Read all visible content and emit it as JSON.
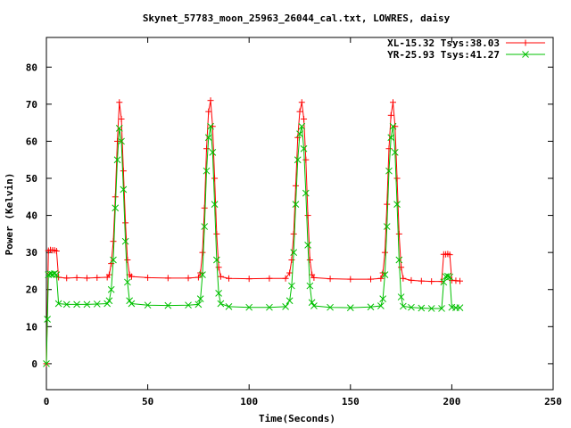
{
  "chart_data": {
    "type": "line",
    "title": "Skynet_57783_moon_25963_26044_cal.txt, LOWRES, daisy",
    "xlabel": "Time(Seconds)",
    "ylabel": "Power (Kelvin)",
    "xlim": [
      0,
      250
    ],
    "ylim": [
      -7,
      88
    ],
    "xticks": [
      0,
      50,
      100,
      150,
      200,
      250
    ],
    "yticks": [
      0,
      10,
      20,
      30,
      40,
      50,
      60,
      70,
      80
    ],
    "grid": false,
    "legend_position": "top-right",
    "series": [
      {
        "name": "XL-15.32 Tsys:38.03",
        "color": "#ff0000",
        "marker": "plus",
        "points": [
          [
            0,
            0
          ],
          [
            1,
            30.5
          ],
          [
            2,
            30.7
          ],
          [
            3,
            30.6
          ],
          [
            4,
            30.6
          ],
          [
            5,
            30.4
          ],
          [
            6,
            23.3
          ],
          [
            10,
            23.1
          ],
          [
            15,
            23.2
          ],
          [
            20,
            23.1
          ],
          [
            25,
            23.2
          ],
          [
            30,
            23.3
          ],
          [
            31,
            24.0
          ],
          [
            32,
            27.0
          ],
          [
            33,
            33.0
          ],
          [
            34,
            45.0
          ],
          [
            35,
            60.0
          ],
          [
            36,
            70.5
          ],
          [
            37,
            66.0
          ],
          [
            38,
            52.0
          ],
          [
            39,
            38.0
          ],
          [
            40,
            28.0
          ],
          [
            41,
            24.0
          ],
          [
            42,
            23.5
          ],
          [
            50,
            23.2
          ],
          [
            60,
            23.1
          ],
          [
            70,
            23.1
          ],
          [
            75,
            23.3
          ],
          [
            76,
            24.5
          ],
          [
            77,
            30.0
          ],
          [
            78,
            42.0
          ],
          [
            79,
            58.0
          ],
          [
            80,
            68.0
          ],
          [
            81,
            71.0
          ],
          [
            82,
            64.0
          ],
          [
            83,
            50.0
          ],
          [
            84,
            35.0
          ],
          [
            85,
            26.0
          ],
          [
            86,
            23.5
          ],
          [
            90,
            23.0
          ],
          [
            100,
            22.9
          ],
          [
            110,
            23.0
          ],
          [
            118,
            23.0
          ],
          [
            120,
            24.5
          ],
          [
            121,
            28.0
          ],
          [
            122,
            35.0
          ],
          [
            123,
            48.0
          ],
          [
            124,
            61.0
          ],
          [
            125,
            68.0
          ],
          [
            126,
            70.5
          ],
          [
            127,
            66.0
          ],
          [
            128,
            55.0
          ],
          [
            129,
            40.0
          ],
          [
            130,
            28.0
          ],
          [
            131,
            24.0
          ],
          [
            132,
            23.2
          ],
          [
            140,
            22.9
          ],
          [
            150,
            22.8
          ],
          [
            160,
            22.8
          ],
          [
            165,
            23.0
          ],
          [
            166,
            24.5
          ],
          [
            167,
            30.0
          ],
          [
            168,
            43.0
          ],
          [
            169,
            58.0
          ],
          [
            170,
            67.0
          ],
          [
            171,
            70.5
          ],
          [
            172,
            64.0
          ],
          [
            173,
            50.0
          ],
          [
            174,
            35.0
          ],
          [
            175,
            26.0
          ],
          [
            176,
            23.0
          ],
          [
            180,
            22.5
          ],
          [
            185,
            22.3
          ],
          [
            190,
            22.2
          ],
          [
            195,
            22.2
          ],
          [
            196,
            29.5
          ],
          [
            197,
            29.5
          ],
          [
            198,
            29.6
          ],
          [
            199,
            29.4
          ],
          [
            200,
            22.5
          ],
          [
            202,
            22.4
          ],
          [
            204,
            22.3
          ]
        ]
      },
      {
        "name": "YR-25.93 Tsys:41.27",
        "color": "#00c000",
        "marker": "cross",
        "points": [
          [
            0,
            0
          ],
          [
            0.5,
            12.0
          ],
          [
            1,
            24.0
          ],
          [
            2,
            24.2
          ],
          [
            3,
            24.1
          ],
          [
            4,
            24.3
          ],
          [
            5,
            24.0
          ],
          [
            6,
            16.2
          ],
          [
            10,
            16.0
          ],
          [
            15,
            16.0
          ],
          [
            20,
            16.0
          ],
          [
            25,
            16.1
          ],
          [
            30,
            16.2
          ],
          [
            31,
            17.0
          ],
          [
            32,
            20.0
          ],
          [
            33,
            28.0
          ],
          [
            34,
            42.0
          ],
          [
            35,
            55.0
          ],
          [
            36,
            63.5
          ],
          [
            37,
            60.0
          ],
          [
            38,
            47.0
          ],
          [
            39,
            33.0
          ],
          [
            40,
            22.0
          ],
          [
            41,
            17.0
          ],
          [
            42,
            16.2
          ],
          [
            50,
            15.8
          ],
          [
            60,
            15.7
          ],
          [
            70,
            15.8
          ],
          [
            75,
            16.0
          ],
          [
            76,
            17.5
          ],
          [
            77,
            24.0
          ],
          [
            78,
            37.0
          ],
          [
            79,
            52.0
          ],
          [
            80,
            61.0
          ],
          [
            81,
            64.0
          ],
          [
            82,
            57.0
          ],
          [
            83,
            43.0
          ],
          [
            84,
            28.0
          ],
          [
            85,
            19.0
          ],
          [
            86,
            16.2
          ],
          [
            90,
            15.4
          ],
          [
            100,
            15.2
          ],
          [
            110,
            15.2
          ],
          [
            118,
            15.4
          ],
          [
            120,
            17.0
          ],
          [
            121,
            21.0
          ],
          [
            122,
            30.0
          ],
          [
            123,
            43.0
          ],
          [
            124,
            55.0
          ],
          [
            125,
            62.0
          ],
          [
            126,
            64.0
          ],
          [
            127,
            58.0
          ],
          [
            128,
            46.0
          ],
          [
            129,
            32.0
          ],
          [
            130,
            21.0
          ],
          [
            131,
            16.5
          ],
          [
            132,
            15.6
          ],
          [
            140,
            15.2
          ],
          [
            150,
            15.1
          ],
          [
            160,
            15.3
          ],
          [
            165,
            15.6
          ],
          [
            166,
            17.5
          ],
          [
            167,
            24.0
          ],
          [
            168,
            37.0
          ],
          [
            169,
            52.0
          ],
          [
            170,
            61.0
          ],
          [
            171,
            64.0
          ],
          [
            172,
            57.0
          ],
          [
            173,
            43.0
          ],
          [
            174,
            28.0
          ],
          [
            175,
            18.0
          ],
          [
            176,
            15.5
          ],
          [
            180,
            15.2
          ],
          [
            185,
            15.0
          ],
          [
            190,
            14.9
          ],
          [
            195,
            14.9
          ],
          [
            196,
            22.0
          ],
          [
            197,
            23.5
          ],
          [
            198,
            23.6
          ],
          [
            199,
            23.4
          ],
          [
            200,
            15.2
          ],
          [
            202,
            15.1
          ],
          [
            204,
            15.1
          ]
        ]
      }
    ]
  }
}
